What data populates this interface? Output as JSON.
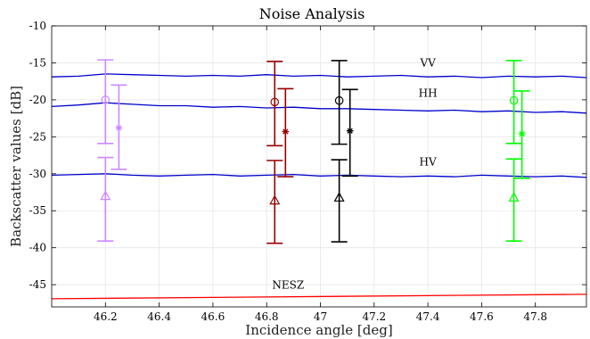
{
  "chart_data": {
    "type": "line",
    "title": "Noise Analysis",
    "xlabel": "Incidence angle [deg]",
    "ylabel": "Backscatter values [dB]",
    "xlim": [
      46.0,
      47.99
    ],
    "ylim": [
      -48,
      -10
    ],
    "x_ticks": [
      46.2,
      46.4,
      46.6,
      46.8,
      47.0,
      47.2,
      47.4,
      47.6,
      47.8
    ],
    "x_tick_labels": [
      "46.2",
      "46.4",
      "46.6",
      "46.8",
      "47",
      "47.2",
      "47.4",
      "47.6",
      "47.8"
    ],
    "y_ticks": [
      -10,
      -15,
      -20,
      -25,
      -30,
      -35,
      -40,
      -45
    ],
    "y_tick_labels": [
      "-10",
      "-15",
      "-20",
      "-25",
      "-30",
      "-35",
      "-40",
      "-45"
    ],
    "grid": true,
    "series": [
      {
        "name": "VV",
        "color": "#0000cc",
        "x": [
          46.0,
          46.1,
          46.2,
          46.3,
          46.4,
          46.5,
          46.6,
          46.7,
          46.8,
          46.9,
          47.0,
          47.1,
          47.2,
          47.3,
          47.4,
          47.5,
          47.6,
          47.7,
          47.8,
          47.9,
          47.99
        ],
        "y": [
          -16.9,
          -16.8,
          -16.5,
          -16.6,
          -16.7,
          -16.8,
          -16.7,
          -16.8,
          -16.6,
          -16.8,
          -16.7,
          -16.9,
          -16.8,
          -16.7,
          -16.9,
          -16.8,
          -17.0,
          -16.8,
          -16.9,
          -16.8,
          -17.0
        ]
      },
      {
        "name": "HH",
        "color": "#0000cc",
        "x": [
          46.0,
          46.1,
          46.2,
          46.3,
          46.4,
          46.5,
          46.6,
          46.7,
          46.8,
          46.9,
          47.0,
          47.1,
          47.2,
          47.3,
          47.4,
          47.5,
          47.6,
          47.7,
          47.8,
          47.9,
          47.99
        ],
        "y": [
          -20.9,
          -20.7,
          -20.4,
          -20.6,
          -20.8,
          -20.8,
          -21.0,
          -20.9,
          -21.1,
          -21.0,
          -21.2,
          -21.2,
          -21.3,
          -21.4,
          -21.5,
          -21.4,
          -21.6,
          -21.5,
          -21.7,
          -21.6,
          -21.8
        ]
      },
      {
        "name": "HV",
        "color": "#0000cc",
        "x": [
          46.0,
          46.1,
          46.2,
          46.3,
          46.4,
          46.5,
          46.6,
          46.7,
          46.8,
          46.9,
          47.0,
          47.1,
          47.2,
          47.3,
          47.4,
          47.5,
          47.6,
          47.7,
          47.8,
          47.9,
          47.99
        ],
        "y": [
          -30.2,
          -30.1,
          -30.0,
          -30.2,
          -30.3,
          -30.2,
          -30.1,
          -30.3,
          -30.2,
          -30.1,
          -30.3,
          -30.2,
          -30.3,
          -30.4,
          -30.3,
          -30.4,
          -30.2,
          -30.3,
          -30.4,
          -30.3,
          -30.5
        ]
      },
      {
        "name": "NESZ",
        "color": "#ff0000",
        "x": [
          46.0,
          47.99
        ],
        "y": [
          -46.9,
          -46.3
        ]
      }
    ],
    "error_bars": [
      {
        "color": "#cc88ff",
        "x": 46.2,
        "y": -20.0,
        "low": -25.9,
        "high": -14.6,
        "marker": "circle"
      },
      {
        "color": "#cc88ff",
        "x": 46.2,
        "y": -33.0,
        "low": -39.1,
        "high": -27.8,
        "marker": "triangle"
      },
      {
        "color": "#cc88ff",
        "x": 46.25,
        "y": -23.8,
        "low": -29.4,
        "high": -18.0,
        "marker": "star"
      },
      {
        "color": "#990000",
        "x": 46.83,
        "y": -20.3,
        "low": -26.2,
        "high": -14.8,
        "marker": "circle"
      },
      {
        "color": "#990000",
        "x": 46.83,
        "y": -33.6,
        "low": -39.4,
        "high": -28.2,
        "marker": "triangle"
      },
      {
        "color": "#990000",
        "x": 46.87,
        "y": -24.3,
        "low": -30.4,
        "high": -18.5,
        "marker": "star"
      },
      {
        "color": "#000000",
        "x": 47.07,
        "y": -20.1,
        "low": -26.0,
        "high": -14.7,
        "marker": "circle"
      },
      {
        "color": "#000000",
        "x": 47.07,
        "y": -33.2,
        "low": -39.2,
        "high": -28.1,
        "marker": "triangle"
      },
      {
        "color": "#000000",
        "x": 47.11,
        "y": -24.2,
        "low": -30.3,
        "high": -18.6,
        "marker": "star"
      },
      {
        "color": "#00ff00",
        "x": 47.72,
        "y": -20.1,
        "low": -25.9,
        "high": -14.7,
        "marker": "circle"
      },
      {
        "color": "#00ff00",
        "x": 47.72,
        "y": -33.2,
        "low": -39.1,
        "high": -28.0,
        "marker": "triangle"
      },
      {
        "color": "#00ff00",
        "x": 47.75,
        "y": -24.6,
        "low": -30.6,
        "high": -18.8,
        "marker": "star"
      }
    ],
    "annotations": [
      {
        "text": "VV",
        "x": 47.4,
        "y": -15.5
      },
      {
        "text": "HH",
        "x": 47.4,
        "y": -19.6
      },
      {
        "text": "HV",
        "x": 47.4,
        "y": -28.9
      },
      {
        "text": "NESZ",
        "x": 46.88,
        "y": -45.5
      }
    ]
  }
}
